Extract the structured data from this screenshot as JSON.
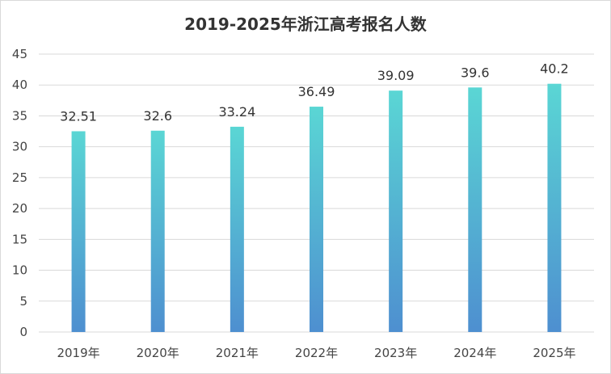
{
  "chart_data": {
    "type": "bar",
    "title": "2019-2025年浙江高考报名人数",
    "categories": [
      "2019年",
      "2020年",
      "2021年",
      "2022年",
      "2023年",
      "2024年",
      "2025年"
    ],
    "values": [
      32.51,
      32.6,
      33.24,
      36.49,
      39.09,
      39.6,
      40.2
    ],
    "data_labels": [
      "32.51",
      "32.6",
      "33.24",
      "36.49",
      "39.09",
      "39.6",
      "40.2"
    ],
    "xlabel": "",
    "ylabel": "",
    "ylim": [
      0,
      45
    ],
    "yticks": [
      0,
      5,
      10,
      15,
      20,
      25,
      30,
      35,
      40,
      45
    ],
    "grid": true,
    "legend": "none",
    "bar_gradient": {
      "top": "#5ad6d4",
      "bottom": "#4e8fd0"
    },
    "grid_color": "#d9d9d9"
  }
}
